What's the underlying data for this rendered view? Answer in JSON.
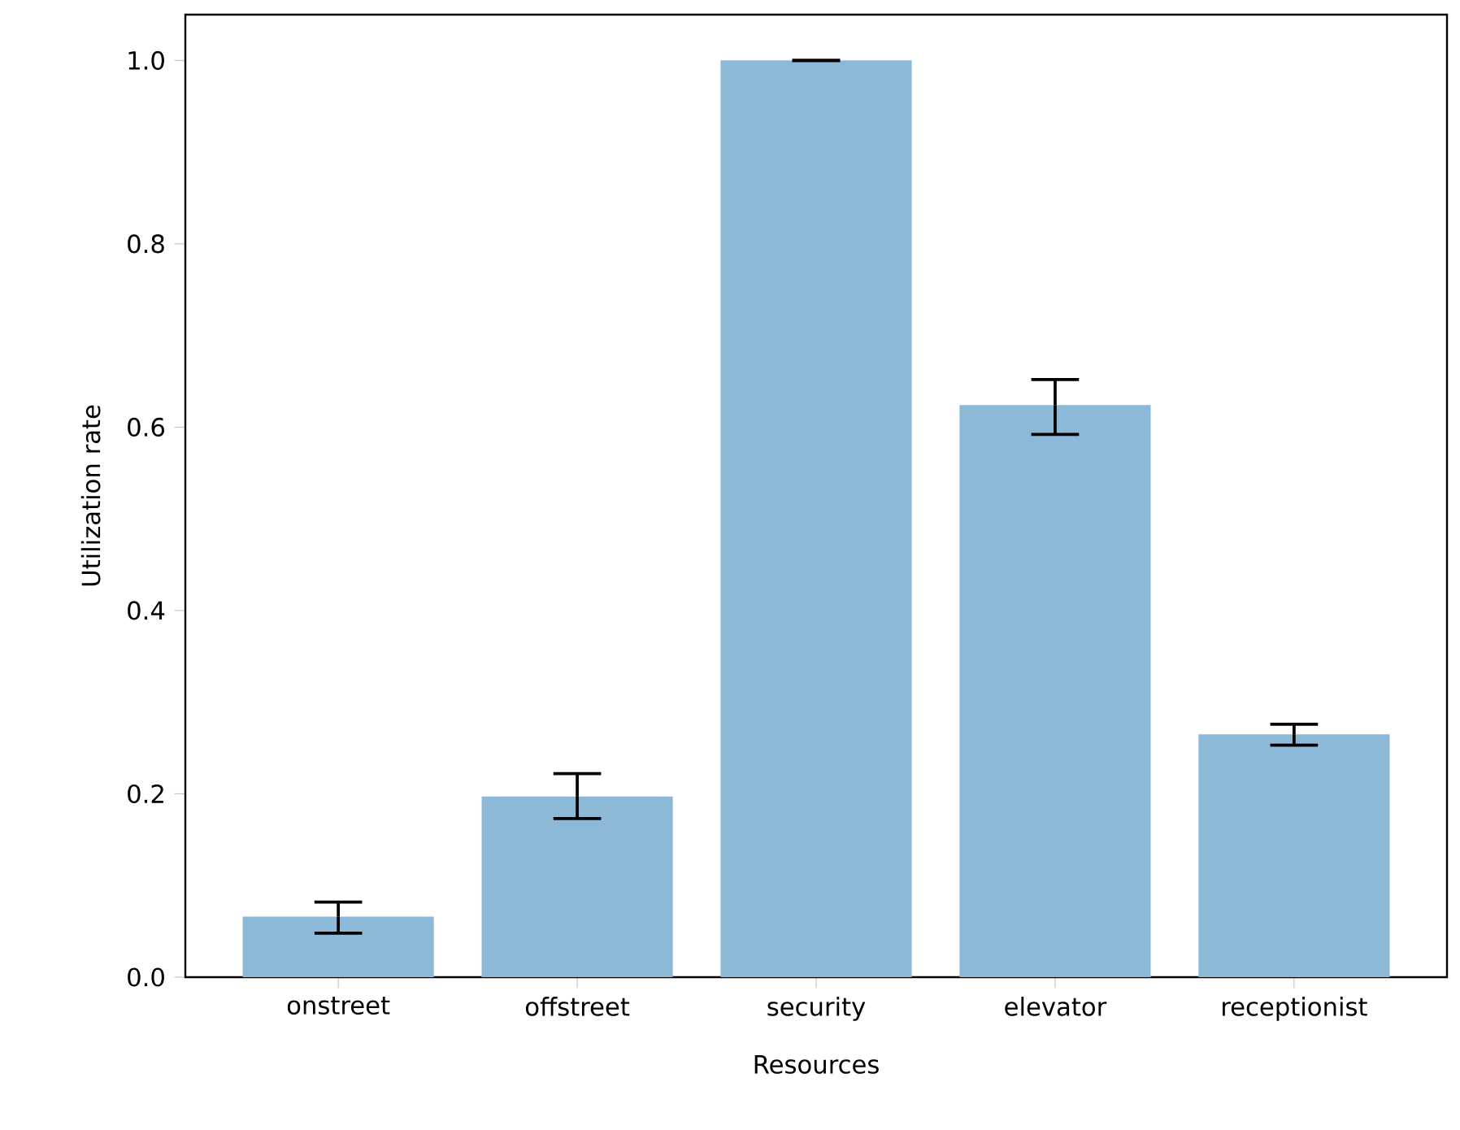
{
  "chart_data": {
    "type": "bar",
    "xlabel": "Resources",
    "ylabel": "Utilization rate",
    "categories": [
      "onstreet",
      "offstreet",
      "security",
      "elevator",
      "receptionist"
    ],
    "values": [
      0.066,
      0.197,
      1.0,
      0.624,
      0.265
    ],
    "errors": [
      [
        0.048,
        0.082
      ],
      [
        0.173,
        0.222
      ],
      [
        1.0,
        1.0
      ],
      [
        0.592,
        0.652
      ],
      [
        0.253,
        0.276
      ]
    ],
    "color": "#8cb9d8",
    "ylim": [
      0,
      1.05
    ],
    "yticks": [
      {
        "value": 0.0,
        "label": "0.0"
      },
      {
        "value": 0.2,
        "label": "0.2"
      },
      {
        "value": 0.4,
        "label": "0.4"
      },
      {
        "value": 0.6,
        "label": "0.6"
      },
      {
        "value": 0.8,
        "label": "0.8"
      },
      {
        "value": 1.0,
        "label": "1.0"
      }
    ],
    "grid": false
  }
}
